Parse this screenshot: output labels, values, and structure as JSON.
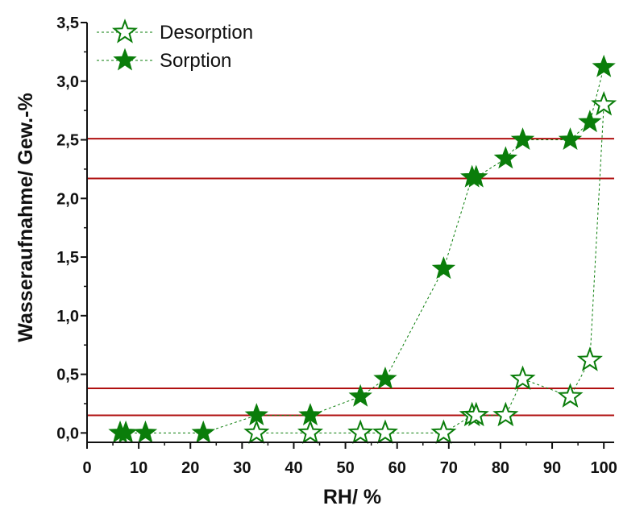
{
  "chart_data": {
    "type": "scatter",
    "title": "",
    "xlabel": "RH/ %",
    "ylabel": "Wasseraufnahme/ Gew.-%",
    "xlim": [
      0,
      102
    ],
    "ylim": [
      -0.08,
      3.5
    ],
    "xticks": [
      0,
      10,
      20,
      30,
      40,
      50,
      60,
      70,
      80,
      90,
      100
    ],
    "xtick_labels": [
      "0",
      "10",
      "20",
      "30",
      "40",
      "50",
      "60",
      "70",
      "80",
      "90",
      "100"
    ],
    "yticks": [
      0,
      0.5,
      1.0,
      1.5,
      2.0,
      2.5,
      3.0,
      3.5
    ],
    "ytick_labels": [
      "0,0",
      "0,5",
      "1,0",
      "1,5",
      "2,0",
      "2,5",
      "3,0",
      "3,5"
    ],
    "grid": false,
    "legend_position": "top-left",
    "series": [
      {
        "name": "Desorption",
        "marker": "star-open",
        "color": "#0a7d0a",
        "x": [
          32.8,
          43.2,
          52.9,
          57.7,
          69.0,
          74.5,
          75.3,
          81.0,
          84.3,
          93.5,
          97.3,
          100.0
        ],
        "y": [
          0.0,
          0.0,
          0.0,
          0.0,
          0.0,
          0.15,
          0.15,
          0.15,
          0.46,
          0.31,
          0.62,
          2.8
        ]
      },
      {
        "name": "Sorption",
        "marker": "star-filled",
        "color": "#0a7d0a",
        "x": [
          6.4,
          7.5,
          11.3,
          22.5,
          32.8,
          43.2,
          52.9,
          57.7,
          69.0,
          74.5,
          75.3,
          81.0,
          84.3,
          93.5,
          97.3,
          100.0
        ],
        "y": [
          0.0,
          0.0,
          0.0,
          0.0,
          0.15,
          0.15,
          0.31,
          0.46,
          1.4,
          2.18,
          2.18,
          2.34,
          2.5,
          2.5,
          2.65,
          3.12
        ]
      }
    ],
    "reference_lines": [
      {
        "y": 2.51,
        "color": "#b01010"
      },
      {
        "y": 2.17,
        "color": "#b01010"
      },
      {
        "y": 0.38,
        "color": "#b01010"
      },
      {
        "y": 0.15,
        "color": "#b01010"
      }
    ]
  }
}
